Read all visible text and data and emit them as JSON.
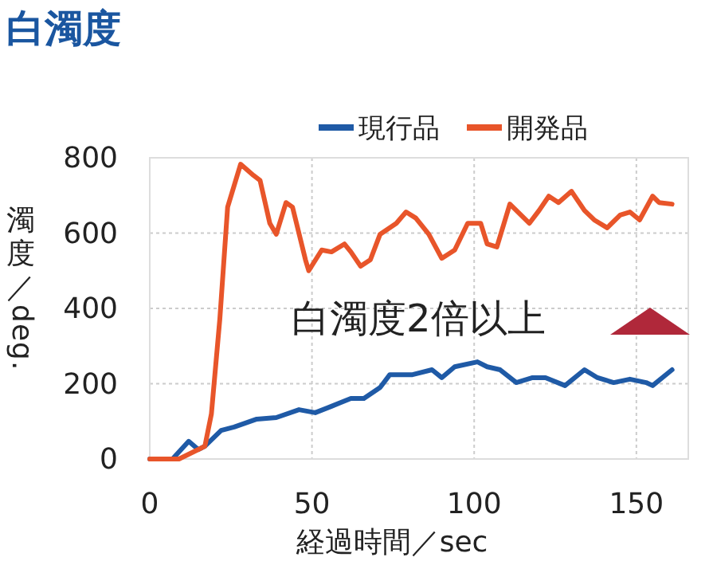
{
  "chart_data": {
    "type": "line",
    "title": "白濁度",
    "xlabel": "経過時間／sec",
    "ylabel": "濁度／deg.",
    "annotations": [
      "白濁度2倍以上"
    ],
    "xlim": [
      0,
      166
    ],
    "ylim": [
      0,
      800
    ],
    "xticks": [
      0,
      50,
      100,
      150
    ],
    "yticks": [
      0,
      200,
      400,
      600,
      800
    ],
    "grid": true,
    "legend": "top right",
    "line_style": "solid",
    "marker": "none",
    "series": [
      {
        "name": "現行品",
        "color": "#1f5aa6",
        "x": [
          0,
          7,
          12,
          15,
          17,
          22,
          26,
          33,
          39,
          46,
          51,
          56,
          62,
          66,
          71,
          74,
          81,
          87,
          90,
          94,
          101,
          104,
          108,
          113,
          118,
          122,
          128,
          134,
          138,
          143,
          148,
          153,
          155,
          161
        ],
        "values": [
          0,
          0,
          47,
          25,
          34,
          76,
          85,
          106,
          110,
          131,
          123,
          140,
          161,
          161,
          190,
          224,
          224,
          237,
          216,
          245,
          258,
          245,
          237,
          203,
          216,
          216,
          195,
          237,
          216,
          203,
          212,
          203,
          195,
          237
        ]
      },
      {
        "name": "開発品",
        "color": "#e8552a",
        "x": [
          0,
          9,
          17,
          19,
          21.6,
          24,
          28,
          32,
          34,
          37,
          39,
          42,
          44,
          48,
          49,
          53,
          56,
          60,
          62,
          65,
          68,
          71,
          76,
          79,
          82,
          86,
          90,
          94,
          98,
          102,
          104,
          107,
          111,
          113,
          117,
          120,
          123,
          126,
          130,
          134,
          137,
          141,
          145,
          148,
          151,
          155,
          157,
          161
        ],
        "values": [
          0,
          0,
          34,
          120,
          372,
          669,
          783,
          753,
          740,
          626,
          597,
          681,
          669,
          529,
          500,
          555,
          550,
          571,
          550,
          512,
          529,
          597,
          626,
          656,
          640,
          597,
          533,
          555,
          626,
          626,
          571,
          563,
          677,
          660,
          626,
          660,
          698,
          681,
          711,
          660,
          635,
          614,
          648,
          656,
          635,
          698,
          681,
          677
        ]
      }
    ]
  }
}
